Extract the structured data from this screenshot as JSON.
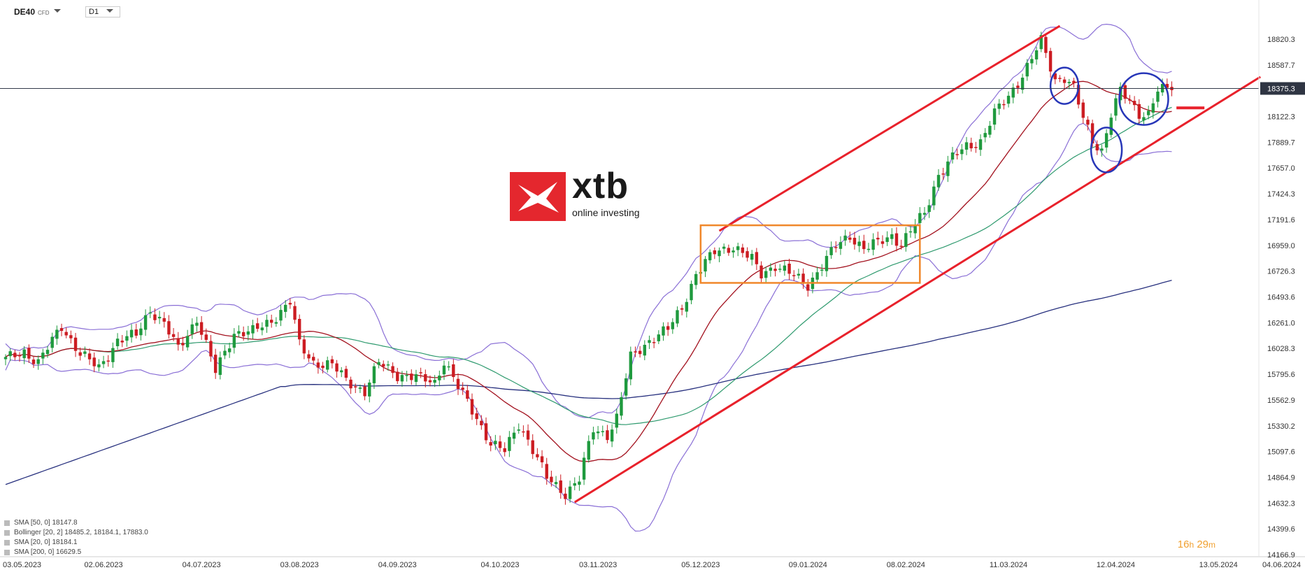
{
  "header": {
    "symbol": "DE40",
    "symbol_tag": "CFD",
    "timeframe": "D1"
  },
  "timer": {
    "hours": "16",
    "h_unit": "h",
    "minutes": "29",
    "m_unit": "m"
  },
  "logo": {
    "name": "xtb",
    "tagline": "online investing"
  },
  "legend": [
    {
      "text": "SMA  [50, 0]  18147.8"
    },
    {
      "text": "Bollinger  [20, 2]  18485.2,  18184.1,  17883.0"
    },
    {
      "text": "SMA  [20, 0]  18184.1"
    },
    {
      "text": "SMA  [200, 0]  16629.5"
    }
  ],
  "colors": {
    "bull": "#1f9a3e",
    "bear": "#cc1c22",
    "trend_channel": "#e8212b",
    "range_box": "#f0872a",
    "bollinger": "#8a6fd6",
    "sma20": "#a3121f",
    "sma50": "#2e9a6e",
    "sma200": "#27307e",
    "circle": "#2736b8",
    "price_line": "#333a4a"
  },
  "chart_data": {
    "type": "candlestick",
    "symbol": "DE40",
    "timeframe": "D1",
    "ylim": [
      14166.9,
      19053.0
    ],
    "y_ticks": [
      18820.3,
      18587.7,
      18122.3,
      17889.7,
      17657.0,
      17424.3,
      17191.6,
      16959.0,
      16726.3,
      16493.6,
      16261.0,
      16028.3,
      15795.6,
      15562.9,
      15330.2,
      15097.6,
      14864.9,
      14632.3,
      14399.6,
      14166.9
    ],
    "last_price": 18375.3,
    "x_labels": [
      "03.05.2023",
      "02.06.2023",
      "04.07.2023",
      "03.08.2023",
      "04.09.2023",
      "04.10.2023",
      "03.11.2023",
      "05.12.2023",
      "09.01.2024",
      "08.02.2024",
      "11.03.2024",
      "12.04.2024",
      "13.05.2024",
      "04.06.2024"
    ],
    "x_label_bar": [
      0,
      21,
      42,
      63,
      84,
      106,
      127,
      149,
      172,
      193,
      215,
      238,
      260,
      276
    ],
    "bars_count": 251,
    "anchors": [
      [
        0,
        15930
      ],
      [
        4,
        16000
      ],
      [
        7,
        15900
      ],
      [
        12,
        16230
      ],
      [
        16,
        15980
      ],
      [
        20,
        15850
      ],
      [
        24,
        16100
      ],
      [
        28,
        16150
      ],
      [
        31,
        16380
      ],
      [
        34,
        16250
      ],
      [
        37,
        16020
      ],
      [
        41,
        16300
      ],
      [
        45,
        15820
      ],
      [
        49,
        16170
      ],
      [
        53,
        16180
      ],
      [
        57,
        16280
      ],
      [
        61,
        16450
      ],
      [
        63,
        16060
      ],
      [
        66,
        15900
      ],
      [
        70,
        15880
      ],
      [
        73,
        15740
      ],
      [
        77,
        15640
      ],
      [
        80,
        15900
      ],
      [
        84,
        15790
      ],
      [
        88,
        15770
      ],
      [
        92,
        15720
      ],
      [
        94,
        15920
      ],
      [
        97,
        15680
      ],
      [
        101,
        15400
      ],
      [
        104,
        15170
      ],
      [
        107,
        15100
      ],
      [
        110,
        15350
      ],
      [
        112,
        15200
      ],
      [
        116,
        14860
      ],
      [
        120,
        14720
      ],
      [
        123,
        14850
      ],
      [
        126,
        15300
      ],
      [
        129,
        15250
      ],
      [
        131,
        15400
      ],
      [
        134,
        15950
      ],
      [
        138,
        16100
      ],
      [
        142,
        16200
      ],
      [
        145,
        16400
      ],
      [
        148,
        16700
      ],
      [
        152,
        16900
      ],
      [
        156,
        16950
      ],
      [
        160,
        16830
      ],
      [
        162,
        16700
      ],
      [
        165,
        16780
      ],
      [
        169,
        16680
      ],
      [
        172,
        16600
      ],
      [
        175,
        16780
      ],
      [
        178,
        16950
      ],
      [
        181,
        17050
      ],
      [
        184,
        16930
      ],
      [
        187,
        16980
      ],
      [
        190,
        17050
      ],
      [
        192,
        16970
      ],
      [
        194,
        17090
      ],
      [
        197,
        17250
      ],
      [
        200,
        17600
      ],
      [
        203,
        17750
      ],
      [
        206,
        17850
      ],
      [
        209,
        17900
      ],
      [
        212,
        18150
      ],
      [
        215,
        18300
      ],
      [
        218,
        18500
      ],
      [
        220,
        18650
      ],
      [
        222,
        18800
      ],
      [
        225,
        18450
      ],
      [
        227,
        18480
      ],
      [
        229,
        18380
      ],
      [
        231,
        18100
      ],
      [
        233,
        17900
      ],
      [
        235,
        17820
      ],
      [
        237,
        18150
      ],
      [
        239,
        18350
      ],
      [
        241,
        18250
      ],
      [
        243,
        18150
      ],
      [
        245,
        18150
      ],
      [
        247,
        18360
      ]
    ],
    "indicators": [
      {
        "name": "SMA [50, 0]",
        "value": 18147.8
      },
      {
        "name": "Bollinger [20, 2]",
        "upper": 18485.2,
        "middle": 18184.1,
        "lower": 17883.0
      },
      {
        "name": "SMA [20, 0]",
        "value": 18184.1
      },
      {
        "name": "SMA [200, 0]",
        "value": 16629.5
      }
    ],
    "annotations": {
      "trend_channel": {
        "lower": [
          [
            122,
            14640
          ],
          [
            269,
            18480
          ]
        ],
        "upper": [
          [
            153,
            17090
          ],
          [
            226,
            18940
          ]
        ]
      },
      "range_box": {
        "bar_start": 149,
        "bar_end": 196,
        "price_high": 17140,
        "price_low": 16620
      },
      "circles": [
        {
          "bar": 227,
          "price": 18400
        },
        {
          "bar": 236,
          "price": 17820
        },
        {
          "bar": 244,
          "price": 18280
        }
      ],
      "marker": {
        "bar_start": 251,
        "bar_end": 257,
        "price": 18200
      }
    }
  }
}
